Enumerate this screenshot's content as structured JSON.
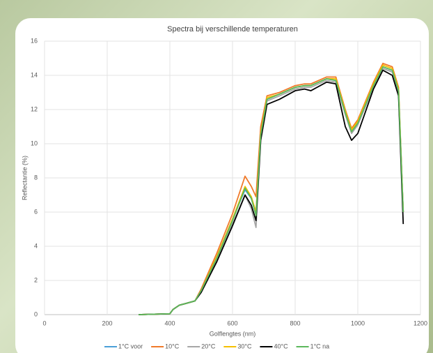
{
  "chart_data": {
    "type": "line",
    "title": "Spectra bij verschillende temperaturen",
    "x_label": "Golflengtes (nm)",
    "y_label": "Reflectantie (%)",
    "xlim": [
      0,
      1200
    ],
    "xticks": [
      0,
      200,
      400,
      600,
      800,
      1000,
      1200
    ],
    "ylim": [
      0,
      16
    ],
    "yticks": [
      0,
      2,
      4,
      6,
      8,
      10,
      12,
      14,
      16
    ],
    "grid": true,
    "x": [
      300,
      400,
      410,
      430,
      450,
      480,
      500,
      550,
      600,
      640,
      660,
      675,
      690,
      710,
      750,
      800,
      830,
      850,
      900,
      930,
      960,
      980,
      1000,
      1050,
      1080,
      1110,
      1130,
      1145
    ],
    "series": [
      {
        "name": "1°C voor",
        "color": "#4a9fd8",
        "values": [
          0,
          0.05,
          0.3,
          0.55,
          0.65,
          0.8,
          1.4,
          3.4,
          5.6,
          7.3,
          6.8,
          6.0,
          10.6,
          12.6,
          12.9,
          13.3,
          13.4,
          13.4,
          13.8,
          13.7,
          11.8,
          10.7,
          11.2,
          13.4,
          14.4,
          14.2,
          13.0,
          6.0
        ]
      },
      {
        "name": "10°C",
        "color": "#f07a2a",
        "values": [
          0,
          0.05,
          0.3,
          0.55,
          0.65,
          0.8,
          1.5,
          3.6,
          5.9,
          8.1,
          7.5,
          6.9,
          11.0,
          12.8,
          13.0,
          13.4,
          13.5,
          13.5,
          13.9,
          13.9,
          12.0,
          10.9,
          11.4,
          13.6,
          14.7,
          14.5,
          13.3,
          6.0
        ]
      },
      {
        "name": "20°C",
        "color": "#a6a6a6",
        "values": [
          0,
          0.05,
          0.3,
          0.55,
          0.65,
          0.8,
          1.3,
          3.2,
          5.3,
          7.0,
          6.2,
          5.1,
          10.2,
          12.5,
          12.8,
          13.2,
          13.3,
          13.3,
          13.7,
          13.6,
          11.7,
          10.6,
          11.1,
          13.3,
          14.4,
          14.2,
          13.0,
          6.0
        ]
      },
      {
        "name": "30°C",
        "color": "#f5c000",
        "values": [
          0,
          0.05,
          0.3,
          0.55,
          0.65,
          0.8,
          1.4,
          3.4,
          5.6,
          7.5,
          6.9,
          6.0,
          10.6,
          12.7,
          12.9,
          13.3,
          13.4,
          13.4,
          13.8,
          13.8,
          11.9,
          10.8,
          11.3,
          13.5,
          14.6,
          14.4,
          13.2,
          6.0
        ]
      },
      {
        "name": "40°C",
        "color": "#000000",
        "values": [
          0,
          0.05,
          0.3,
          0.55,
          0.65,
          0.8,
          1.3,
          3.1,
          5.2,
          7.0,
          6.4,
          5.5,
          10.2,
          12.3,
          12.6,
          13.1,
          13.2,
          13.1,
          13.6,
          13.5,
          11.0,
          10.2,
          10.6,
          13.2,
          14.3,
          14.0,
          12.8,
          5.3
        ]
      },
      {
        "name": "1°C na",
        "color": "#5cb85c",
        "values": [
          0,
          0.05,
          0.3,
          0.55,
          0.65,
          0.8,
          1.4,
          3.3,
          5.5,
          7.4,
          6.8,
          5.8,
          10.5,
          12.6,
          12.9,
          13.3,
          13.4,
          13.4,
          13.8,
          13.7,
          11.8,
          10.7,
          11.2,
          13.4,
          14.5,
          14.3,
          13.1,
          6.0
        ]
      }
    ]
  }
}
